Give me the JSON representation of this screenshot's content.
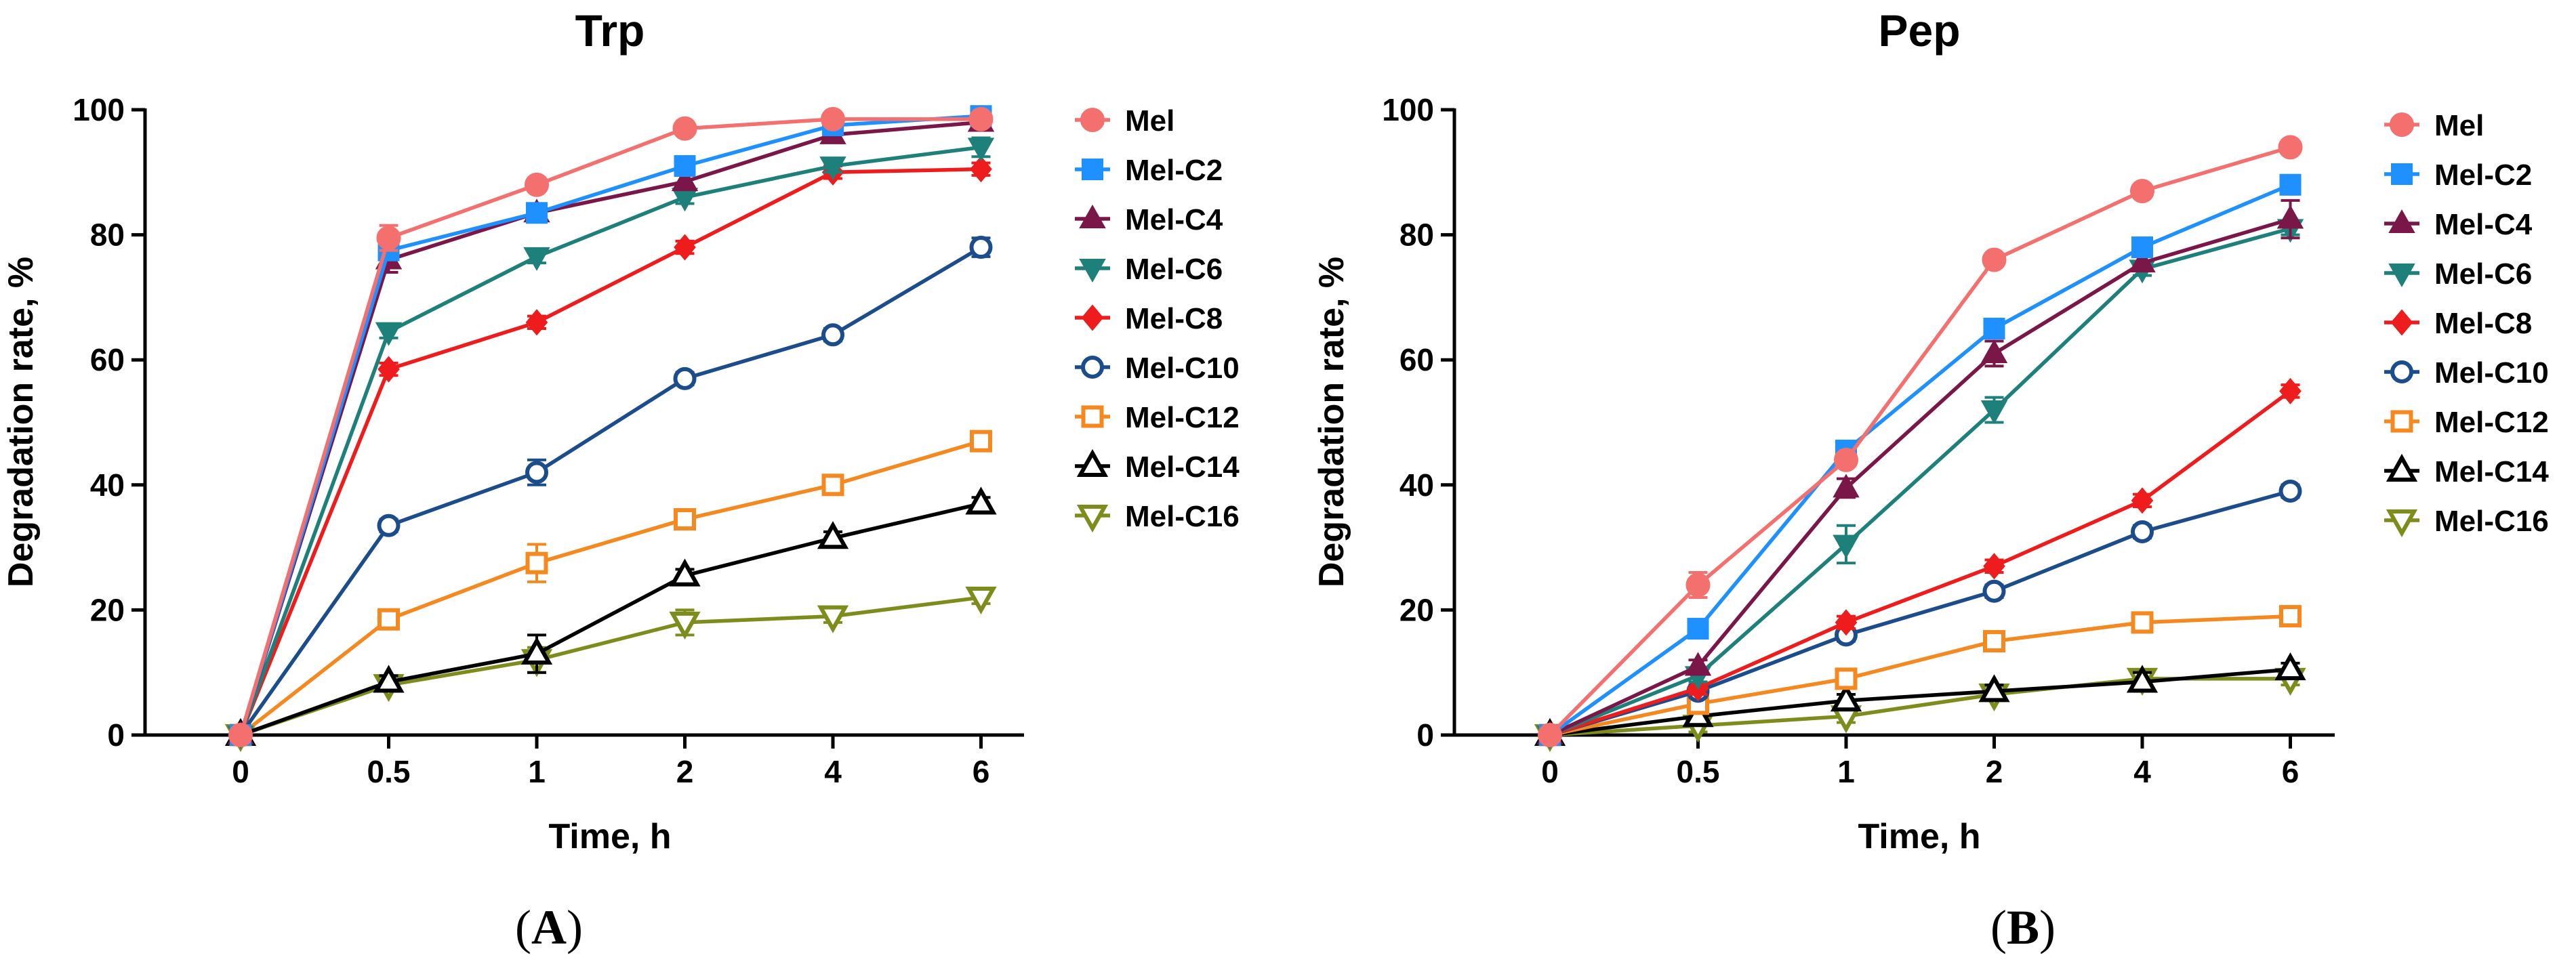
{
  "chart_data": [
    {
      "type": "line",
      "panel_label_open": "(",
      "panel_letter": "A",
      "panel_label_close": ")",
      "title": "Trp",
      "xlabel": "Time, h",
      "ylabel": "Degradation rate, %",
      "categories": [
        "0",
        "0.5",
        "1",
        "2",
        "4",
        "6"
      ],
      "ylim": [
        0,
        100
      ],
      "yticks": [
        0,
        20,
        40,
        60,
        80,
        100
      ],
      "legend_position": "right",
      "series": [
        {
          "name": "Mel",
          "color": "#F4706E",
          "marker": "circle-filled",
          "values": [
            0,
            79.5,
            88,
            97,
            98.5,
            98.5
          ],
          "errors": [
            0,
            2,
            1,
            1,
            0.5,
            0.5
          ]
        },
        {
          "name": "Mel-C2",
          "color": "#1E90FF",
          "marker": "square-filled",
          "values": [
            0,
            77.5,
            83.5,
            91,
            97.5,
            99
          ],
          "errors": [
            0,
            1,
            1,
            1.5,
            1,
            0.5
          ]
        },
        {
          "name": "Mel-C4",
          "color": "#7B1648",
          "marker": "triangle-up-filled",
          "values": [
            0,
            76,
            83.5,
            88.5,
            96,
            98
          ],
          "errors": [
            0,
            2,
            1,
            1,
            1,
            1
          ]
        },
        {
          "name": "Mel-C6",
          "color": "#1E807A",
          "marker": "triangle-down-filled",
          "values": [
            0,
            64.5,
            76.5,
            86,
            91,
            94
          ],
          "errors": [
            0,
            1,
            1,
            1,
            1,
            1.5
          ]
        },
        {
          "name": "Mel-C8",
          "color": "#EE1C1C",
          "marker": "diamond-filled",
          "values": [
            0,
            58.5,
            66,
            78,
            90,
            90.5
          ],
          "errors": [
            0,
            1,
            1,
            1,
            1,
            1
          ]
        },
        {
          "name": "Mel-C10",
          "color": "#1B4C8C",
          "marker": "circle-open",
          "values": [
            0,
            33.5,
            42,
            57,
            64,
            78
          ],
          "errors": [
            0,
            1,
            2,
            1,
            1,
            1.5
          ]
        },
        {
          "name": "Mel-C12",
          "color": "#F5891F",
          "marker": "square-open",
          "values": [
            0,
            18.5,
            27.5,
            34.5,
            40,
            47
          ],
          "errors": [
            0,
            1,
            3,
            1,
            1,
            1.5
          ]
        },
        {
          "name": "Mel-C14",
          "color": "#000000",
          "marker": "triangle-up-open",
          "values": [
            0,
            8.5,
            13,
            25.5,
            31.5,
            37
          ],
          "errors": [
            0,
            1,
            3,
            1,
            1,
            1
          ]
        },
        {
          "name": "Mel-C16",
          "color": "#7E8C1C",
          "marker": "triangle-down-open",
          "values": [
            0,
            8,
            12,
            18,
            19,
            22
          ],
          "errors": [
            0,
            1,
            2,
            2,
            1,
            1
          ]
        }
      ]
    },
    {
      "type": "line",
      "panel_label_open": "(",
      "panel_letter": "B",
      "panel_label_close": ")",
      "title": "Pep",
      "xlabel": "Time, h",
      "ylabel": "Degradation rate, %",
      "categories": [
        "0",
        "0.5",
        "1",
        "2",
        "4",
        "6"
      ],
      "ylim": [
        0,
        100
      ],
      "yticks": [
        0,
        20,
        40,
        60,
        80,
        100
      ],
      "legend_position": "right",
      "series": [
        {
          "name": "Mel",
          "color": "#F4706E",
          "marker": "circle-filled",
          "values": [
            0,
            24,
            44,
            76,
            87,
            94
          ],
          "errors": [
            0,
            2,
            1,
            1,
            1,
            1
          ]
        },
        {
          "name": "Mel-C2",
          "color": "#1E90FF",
          "marker": "square-filled",
          "values": [
            0,
            17,
            45.5,
            65,
            78,
            88
          ],
          "errors": [
            0,
            1.5,
            1,
            1.5,
            1,
            1.5
          ]
        },
        {
          "name": "Mel-C4",
          "color": "#7B1648",
          "marker": "triangle-up-filled",
          "values": [
            0,
            11,
            39.5,
            61,
            75.5,
            82.5
          ],
          "errors": [
            0,
            1,
            1.5,
            2,
            1,
            3
          ]
        },
        {
          "name": "Mel-C6",
          "color": "#1E807A",
          "marker": "triangle-down-filled",
          "values": [
            0,
            9.5,
            30.5,
            52,
            74.5,
            81
          ],
          "errors": [
            0,
            1,
            3,
            2,
            1,
            1
          ]
        },
        {
          "name": "Mel-C8",
          "color": "#EE1C1C",
          "marker": "diamond-filled",
          "values": [
            0,
            7.5,
            18,
            27,
            37.5,
            55
          ],
          "errors": [
            0,
            1,
            1,
            1,
            1,
            1
          ]
        },
        {
          "name": "Mel-C10",
          "color": "#1B4C8C",
          "marker": "circle-open",
          "values": [
            0,
            7,
            16,
            23,
            32.5,
            39
          ],
          "errors": [
            0,
            1,
            1,
            1,
            1,
            1
          ]
        },
        {
          "name": "Mel-C12",
          "color": "#F5891F",
          "marker": "square-open",
          "values": [
            0,
            5,
            9,
            15,
            18,
            19
          ],
          "errors": [
            0,
            1,
            1,
            1,
            1,
            1
          ]
        },
        {
          "name": "Mel-C14",
          "color": "#000000",
          "marker": "triangle-up-open",
          "values": [
            0,
            3,
            5.5,
            7,
            8.5,
            10.5
          ],
          "errors": [
            0,
            1,
            1,
            1,
            1.5,
            1
          ]
        },
        {
          "name": "Mel-C16",
          "color": "#7E8C1C",
          "marker": "triangle-down-open",
          "values": [
            0,
            1.5,
            3,
            6.5,
            9,
            9
          ],
          "errors": [
            0,
            1,
            1,
            1,
            1,
            1
          ]
        }
      ]
    }
  ]
}
